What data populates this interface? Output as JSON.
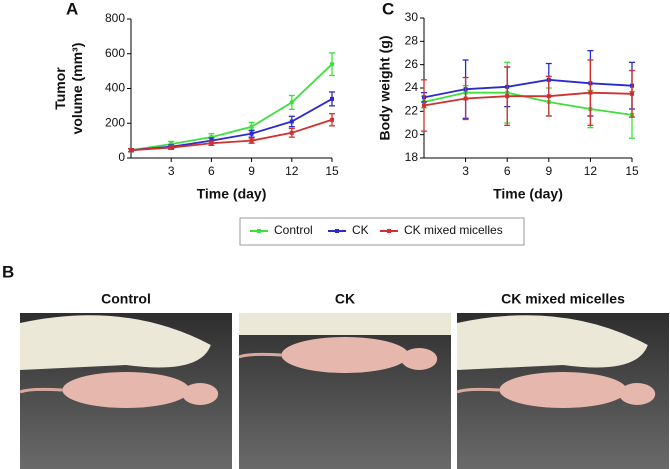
{
  "panel_labels": [
    "A",
    "B",
    "C"
  ],
  "chart_data": [
    {
      "type": "line",
      "x_label": "Time (day)",
      "y_label": [
        "Tumor",
        "volume (mm³)"
      ],
      "x": [
        0,
        3,
        6,
        9,
        12,
        15
      ],
      "xlim": [
        0,
        15
      ],
      "xticks": [
        3,
        6,
        9,
        12,
        15
      ],
      "ylim": [
        0,
        800
      ],
      "yticks": [
        0,
        200,
        400,
        600,
        800
      ],
      "series": [
        {
          "name": "Control",
          "color": "#3ee03e",
          "values": [
            45,
            80,
            120,
            180,
            320,
            540
          ],
          "errors": [
            10,
            15,
            20,
            25,
            40,
            65
          ]
        },
        {
          "name": "CK",
          "color": "#2a2ad0",
          "values": [
            45,
            65,
            100,
            140,
            210,
            340
          ],
          "errors": [
            8,
            10,
            15,
            20,
            30,
            40
          ]
        },
        {
          "name": "CK mixed micelles",
          "color": "#d03030",
          "values": [
            45,
            60,
            85,
            100,
            145,
            220
          ],
          "errors": [
            8,
            10,
            12,
            15,
            25,
            35
          ]
        }
      ]
    },
    {
      "type": "line",
      "x_label": "Time (day)",
      "y_label": [
        "Body weight (g)"
      ],
      "x": [
        0,
        3,
        6,
        9,
        12,
        15
      ],
      "xlim": [
        0,
        15
      ],
      "xticks": [
        3,
        6,
        9,
        12,
        15
      ],
      "ylim": [
        18,
        30
      ],
      "yticks": [
        18,
        20,
        22,
        24,
        26,
        28,
        30
      ],
      "series": [
        {
          "color": "#3ee03e",
          "values": [
            22.8,
            23.6,
            23.6,
            22.8,
            22.2,
            21.7
          ],
          "errors": [
            0.5,
            0.6,
            2.6,
            1.2,
            1.6,
            2.0
          ]
        },
        {
          "color": "#2a2ad0",
          "values": [
            23.2,
            23.9,
            24.1,
            24.7,
            24.4,
            24.2
          ],
          "errors": [
            0.4,
            2.5,
            1.7,
            1.4,
            2.8,
            2.0
          ]
        },
        {
          "color": "#d03030",
          "values": [
            22.5,
            23.1,
            23.3,
            23.3,
            23.6,
            23.5
          ],
          "errors": [
            2.2,
            1.8,
            2.5,
            1.7,
            2.8,
            2.0
          ]
        }
      ]
    }
  ],
  "photos": [
    {
      "title": "Control"
    },
    {
      "title": "CK"
    },
    {
      "title": "CK mixed micelles"
    }
  ]
}
